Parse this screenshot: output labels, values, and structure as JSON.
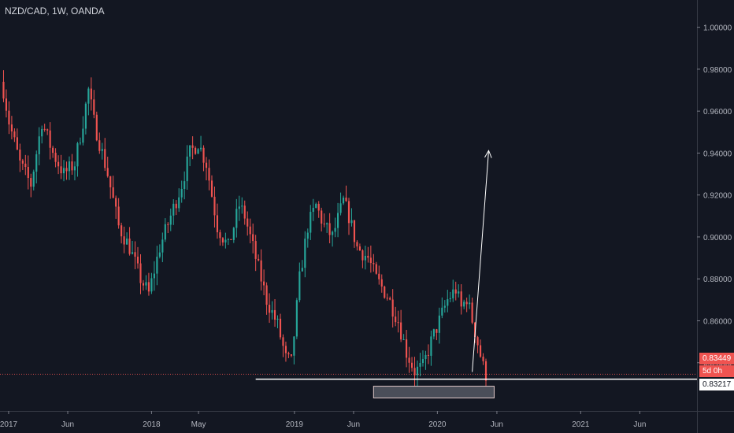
{
  "header": {
    "title": "NZD/CAD, 1W, OANDA"
  },
  "price_tags": {
    "current": "0.83449",
    "timer": "5d 0h",
    "level": "0.83217"
  },
  "colors": {
    "background": "#131722",
    "up": "#26a69a",
    "down": "#ef5350",
    "axis_text": "#b2b5be",
    "line": "#ffffff"
  },
  "chart_data": {
    "type": "candlestick",
    "title": "NZD/CAD, 1W, OANDA",
    "y_ticks": [
      "1.00000",
      "0.98000",
      "0.96000",
      "0.94000",
      "0.92000",
      "0.90000",
      "0.88000",
      "0.86000",
      "0.84000"
    ],
    "y_tick_values": [
      1.0,
      0.98,
      0.96,
      0.94,
      0.92,
      0.9,
      0.88,
      0.86,
      0.84
    ],
    "ylim": [
      0.817,
      1.013
    ],
    "x_ticks": [
      "2017",
      "Jun",
      "2018",
      "May",
      "2019",
      "Jun",
      "2020",
      "Jun",
      "2021",
      "Jun"
    ],
    "x_tick_dates": [
      "2017-01-01",
      "2017-06-01",
      "2018-01-01",
      "2018-05-01",
      "2019-01-01",
      "2019-06-01",
      "2020-01-01",
      "2020-06-01",
      "2021-01-01",
      "2021-06-01"
    ],
    "xlim": [
      "2016-12-10",
      "2021-10-25"
    ],
    "current_price": 0.83449,
    "support_level": 0.83217,
    "support_line": {
      "from": "2018-09-24",
      "to": "2021-10-25",
      "price": 0.83217
    },
    "demand_zone": {
      "from": "2019-07-22",
      "to": "2020-05-25",
      "top": 0.8288,
      "bottom": 0.8232
    },
    "arrow": {
      "from_date": "2020-03-30",
      "from_price": 0.8356,
      "to_date": "2020-05-11",
      "to_price": 0.9412
    },
    "candle_start": "2016-12-19",
    "close_path": [
      [
        0,
        0.97
      ],
      [
        2,
        0.955
      ],
      [
        6,
        0.935
      ],
      [
        10,
        0.925
      ],
      [
        14,
        0.955
      ],
      [
        18,
        0.94
      ],
      [
        22,
        0.93
      ],
      [
        26,
        0.935
      ],
      [
        29,
        0.955
      ],
      [
        31,
        0.97
      ],
      [
        33,
        0.955
      ],
      [
        38,
        0.93
      ],
      [
        42,
        0.905
      ],
      [
        46,
        0.895
      ],
      [
        50,
        0.88
      ],
      [
        53,
        0.873
      ],
      [
        57,
        0.895
      ],
      [
        61,
        0.91
      ],
      [
        65,
        0.925
      ],
      [
        68,
        0.94
      ],
      [
        71,
        0.945
      ],
      [
        74,
        0.935
      ],
      [
        78,
        0.905
      ],
      [
        82,
        0.895
      ],
      [
        86,
        0.915
      ],
      [
        88,
        0.91
      ],
      [
        92,
        0.89
      ],
      [
        96,
        0.87
      ],
      [
        100,
        0.858
      ],
      [
        103,
        0.842
      ],
      [
        105,
        0.84
      ],
      [
        108,
        0.88
      ],
      [
        111,
        0.905
      ],
      [
        114,
        0.915
      ],
      [
        117,
        0.905
      ],
      [
        120,
        0.9
      ],
      [
        124,
        0.917
      ],
      [
        126,
        0.91
      ],
      [
        129,
        0.895
      ],
      [
        133,
        0.89
      ],
      [
        136,
        0.88
      ],
      [
        140,
        0.872
      ],
      [
        144,
        0.86
      ],
      [
        147,
        0.845
      ],
      [
        150,
        0.836
      ],
      [
        153,
        0.838
      ],
      [
        156,
        0.85
      ],
      [
        159,
        0.86
      ],
      [
        162,
        0.87
      ],
      [
        165,
        0.875
      ],
      [
        167,
        0.866
      ],
      [
        169,
        0.871
      ],
      [
        172,
        0.855
      ],
      [
        175,
        0.838
      ],
      [
        176,
        0.8345
      ]
    ]
  }
}
